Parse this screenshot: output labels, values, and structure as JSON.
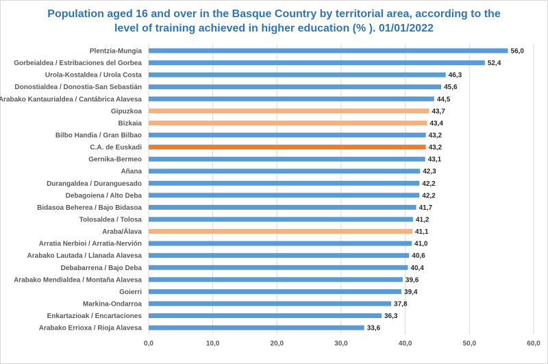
{
  "chart_data": {
    "type": "bar",
    "orientation": "horizontal",
    "title": "Population aged 16 and over in the Basque Country by territorial area, according to the level of training achieved in higher education (% ). 01/01/2022",
    "title_lines": [
      "Population aged 16 and over in the Basque Country by territorial area, according to the",
      "level of training achieved in higher education (% ). 01/01/2022"
    ],
    "xlabel": "",
    "ylabel": "",
    "xlim": [
      0,
      60
    ],
    "xticks": [
      "0,0",
      "10,0",
      "20,0",
      "30,0",
      "40,0",
      "50,0",
      "60,0"
    ],
    "grid": true,
    "categories": [
      "Plentzia-Mungia",
      "Gorbeialdea / Estribaciones del Gorbea",
      "Urola-Kostaldea  /  Urola Costa",
      "Donostialdea  /  Donostia-San Sebastián",
      "Arabako Kantaurialdea / Cantábrica Alavesa",
      "Gipuzkoa",
      "Bizkaia",
      "Bilbo Handia  /  Gran Bilbao",
      "C.A. de Euskadi",
      "Gernika-Bermeo",
      "Añana",
      "Durangaldea  /  Duranguesado",
      "Debagoiena  /  Alto Deba",
      "Bidasoa Beherea  /  Bajo Bidasoa",
      "Tolosaldea  /  Tolosa",
      "Araba/Álava",
      "Arratia Nerbioi  /  Arratia-Nervión",
      "Arabako Lautada  /  Llanada Alavesa",
      "Debabarrena / Bajo Deba",
      "Arabako Mendialdea  /  Montaña Alavesa",
      "Goierri",
      "Markina-Ondarroa",
      "Enkartazioak  /  Encartaciones",
      "Arabako Errioxa / Rioja Alavesa"
    ],
    "values": [
      56.0,
      52.4,
      46.3,
      45.6,
      44.5,
      43.7,
      43.4,
      43.2,
      43.2,
      43.1,
      42.3,
      42.2,
      42.2,
      41.7,
      41.2,
      41.1,
      41.0,
      40.6,
      40.4,
      39.6,
      39.4,
      37.8,
      36.3,
      33.6
    ],
    "value_labels": [
      "56,0",
      "52,4",
      "46,3",
      "45,6",
      "44,5",
      "43,7",
      "43,4",
      "43,2",
      "43,2",
      "43,1",
      "42,3",
      "42,2",
      "42,2",
      "41,7",
      "41,2",
      "41,1",
      "41,0",
      "40,6",
      "40,4",
      "39,6",
      "39,4",
      "37,8",
      "36,3",
      "33,6"
    ],
    "bar_types": [
      "area",
      "area",
      "area",
      "area",
      "area",
      "province",
      "province",
      "area",
      "total",
      "area",
      "area",
      "area",
      "area",
      "area",
      "area",
      "province",
      "area",
      "area",
      "area",
      "area",
      "area",
      "area",
      "area",
      "area"
    ],
    "colors": {
      "area": "#5b9bd5",
      "province": "#f4b183",
      "total": "#ed7d31",
      "title": "#2e75b6",
      "grid": "#d9d9d9"
    }
  }
}
